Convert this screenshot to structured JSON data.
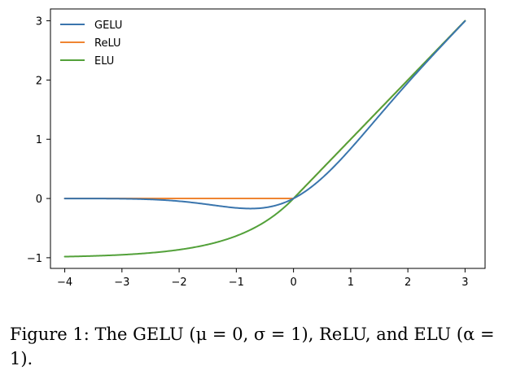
{
  "chart_data": {
    "type": "line",
    "title": "",
    "xlabel": "",
    "ylabel": "",
    "xlim": [
      -4.25,
      3.35
    ],
    "ylim": [
      -1.18,
      3.2
    ],
    "xticks": [
      -4,
      -3,
      -2,
      -1,
      0,
      1,
      2,
      3
    ],
    "yticks": [
      -1,
      0,
      1,
      2,
      3
    ],
    "xtick_labels": [
      "−4",
      "−3",
      "−2",
      "−1",
      "0",
      "1",
      "2",
      "3"
    ],
    "ytick_labels": [
      "−1",
      "0",
      "1",
      "2",
      "3"
    ],
    "grid": false,
    "legend_position": "top-left",
    "x_range": [
      -4,
      3
    ],
    "series": [
      {
        "name": "GELU",
        "function": "gelu",
        "color": "#3a75ad"
      },
      {
        "name": "ReLU",
        "function": "relu",
        "color": "#ef8532"
      },
      {
        "name": "ELU",
        "function": "elu",
        "alpha": 1,
        "color": "#53a13a"
      }
    ],
    "key_points": {
      "GELU": [
        [
          -4,
          -0.0001
        ],
        [
          -3,
          -0.004
        ],
        [
          -2,
          -0.046
        ],
        [
          -1,
          -0.159
        ],
        [
          -0.75,
          -0.17
        ],
        [
          0,
          0
        ],
        [
          1,
          0.841
        ],
        [
          2,
          1.954
        ],
        [
          3,
          2.996
        ]
      ],
      "ReLU": [
        [
          -4,
          0
        ],
        [
          0,
          0
        ],
        [
          3,
          3
        ]
      ],
      "ELU": [
        [
          -4,
          -0.982
        ],
        [
          -3,
          -0.95
        ],
        [
          -2,
          -0.865
        ],
        [
          -1,
          -0.632
        ],
        [
          0,
          0
        ],
        [
          1,
          1
        ],
        [
          2,
          2
        ],
        [
          3,
          3
        ]
      ]
    }
  },
  "caption": {
    "text": "Figure 1: The GELU (μ = 0, σ = 1), ReLU, and ELU (α = 1)."
  }
}
